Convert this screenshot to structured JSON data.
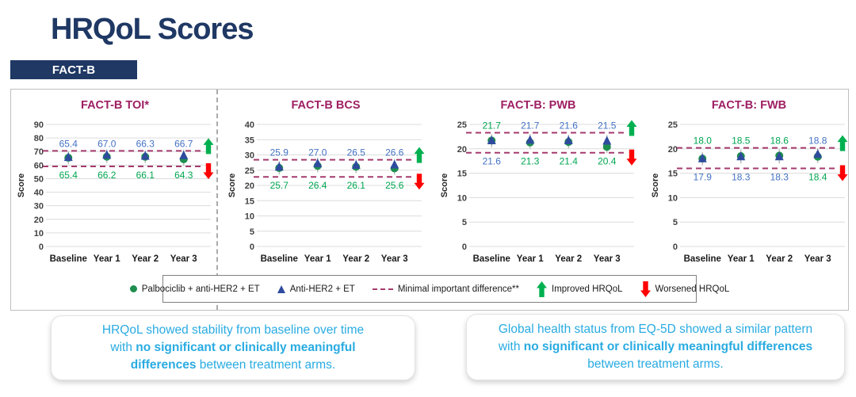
{
  "page": {
    "title": "HRQoL Scores",
    "section_badge": "FACT-B"
  },
  "colors": {
    "navy": "#1F3864",
    "chart_title_magenta": "#9E1F63",
    "mid_line": "#A53A6D",
    "series_green_marker": "#1E8E4E",
    "series_green_label": "#00A651",
    "series_blue_marker": "#2F4B9E",
    "series_blue_label": "#4472C4",
    "arrow_green": "#00B050",
    "arrow_red": "#FF0000",
    "callout_blue": "#29ABE2",
    "gridline": "#DCDCDC"
  },
  "chart_data": [
    {
      "id": "fact-b-toi",
      "type": "scatter",
      "title": "FACT-B TOI*",
      "ylabel": "Score",
      "ylim": [
        0,
        90
      ],
      "ytick_step": 10,
      "grid": "on",
      "categories": [
        "Baseline",
        "Year 1",
        "Year 2",
        "Year 3"
      ],
      "series": [
        {
          "name": "Palbociclib + anti-HER2 + ET",
          "marker": "circle",
          "values": [
            65.4,
            66.2,
            66.1,
            64.3
          ]
        },
        {
          "name": "Anti-HER2 + ET",
          "marker": "triangle",
          "values": [
            65.4,
            67.0,
            66.3,
            66.7
          ]
        }
      ],
      "mid_lines": {
        "upper": 70.5,
        "lower": 59.0,
        "label": "Minimal important difference"
      },
      "arrows": {
        "up": "Improved HRQoL",
        "down": "Worsened HRQoL"
      }
    },
    {
      "id": "fact-b-bcs",
      "type": "scatter",
      "title": "FACT-B BCS",
      "ylabel": "Score",
      "ylim": [
        0,
        40
      ],
      "ytick_step": 5,
      "grid": "on",
      "categories": [
        "Baseline",
        "Year 1",
        "Year 2",
        "Year 3"
      ],
      "series": [
        {
          "name": "Palbociclib + anti-HER2 + ET",
          "marker": "circle",
          "values": [
            25.7,
            26.4,
            26.1,
            25.6
          ]
        },
        {
          "name": "Anti-HER2 + ET",
          "marker": "triangle",
          "values": [
            25.9,
            27.0,
            26.5,
            26.6
          ]
        }
      ],
      "mid_lines": {
        "upper": 28.4,
        "lower": 22.8,
        "label": "Minimal important difference"
      },
      "arrows": {
        "up": "Improved HRQoL",
        "down": "Worsened HRQoL"
      }
    },
    {
      "id": "fact-b-pwb",
      "type": "scatter",
      "title": "FACT-B: PWB",
      "ylabel": "Score",
      "ylim": [
        0,
        25
      ],
      "ytick_step": 5,
      "grid": "on",
      "categories": [
        "Baseline",
        "Year 1",
        "Year 2",
        "Year 3"
      ],
      "series": [
        {
          "name": "Palbociclib + anti-HER2 + ET",
          "marker": "circle",
          "values": [
            21.7,
            21.3,
            21.4,
            20.4
          ]
        },
        {
          "name": "Anti-HER2 + ET",
          "marker": "triangle",
          "values": [
            21.6,
            21.7,
            21.6,
            21.5
          ]
        }
      ],
      "mid_lines": {
        "upper": 23.3,
        "lower": 19.2,
        "label": "Minimal important difference"
      },
      "arrows": {
        "up": "Improved HRQoL",
        "down": "Worsened HRQoL"
      }
    },
    {
      "id": "fact-b-fwb",
      "type": "scatter",
      "title": "FACT-B: FWB",
      "ylabel": "Score",
      "ylim": [
        0,
        25
      ],
      "ytick_step": 5,
      "grid": "on",
      "categories": [
        "Baseline",
        "Year 1",
        "Year 2",
        "Year 3"
      ],
      "series": [
        {
          "name": "Palbociclib + anti-HER2 + ET",
          "marker": "circle",
          "values": [
            18.0,
            18.5,
            18.6,
            18.4
          ]
        },
        {
          "name": "Anti-HER2 + ET",
          "marker": "triangle",
          "values": [
            17.9,
            18.3,
            18.3,
            18.8
          ]
        }
      ],
      "mid_lines": {
        "upper": 20.2,
        "lower": 16.0,
        "label": "Minimal important difference"
      },
      "arrows": {
        "up": "Improved HRQoL",
        "down": "Worsened HRQoL"
      }
    }
  ],
  "legend": {
    "items": [
      {
        "marker": "circle",
        "label": "Palbociclib + anti-HER2 + ET"
      },
      {
        "marker": "triangle",
        "label": "Anti-HER2 + ET"
      },
      {
        "marker": "dashes",
        "label": "Minimal important difference**"
      },
      {
        "marker": "arrow-up",
        "label": "Improved HRQoL"
      },
      {
        "marker": "arrow-down",
        "label": "Worsened HRQoL"
      }
    ]
  },
  "callouts": [
    {
      "lines": [
        [
          {
            "t": "HRQoL showed stability from baseline over time"
          }
        ],
        [
          {
            "t": "with "
          },
          {
            "t": "no significant or clinically meaningful",
            "b": true
          }
        ],
        [
          {
            "t": "differences",
            "b": true
          },
          {
            "t": " between treatment arms."
          }
        ]
      ]
    },
    {
      "lines": [
        [
          {
            "t": "Global health status from EQ-5D showed a similar pattern"
          }
        ],
        [
          {
            "t": "with "
          },
          {
            "t": "no significant or clinically meaningful differences",
            "b": true
          }
        ],
        [
          {
            "t": "between treatment arms."
          }
        ]
      ]
    }
  ]
}
